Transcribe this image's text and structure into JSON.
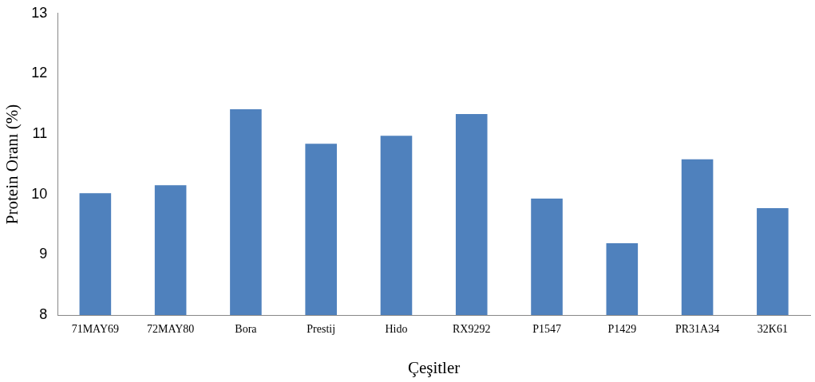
{
  "chart_data": {
    "type": "bar",
    "xlabel": "Çeşitler",
    "ylabel": "Protein Oranı (%)",
    "categories": [
      "71MAY69",
      "72MAY80",
      "Bora",
      "Prestij",
      "Hido",
      "RX9292",
      "P1547",
      "P1429",
      "PR31A34",
      "32K61"
    ],
    "values": [
      10.02,
      10.15,
      11.41,
      10.84,
      10.97,
      11.33,
      9.93,
      9.19,
      10.58,
      9.77
    ],
    "color": "#4f81bd",
    "ylim": [
      8,
      13
    ],
    "yticks": [
      8,
      9,
      10,
      11,
      12,
      13
    ],
    "grid": false,
    "legend": false
  }
}
